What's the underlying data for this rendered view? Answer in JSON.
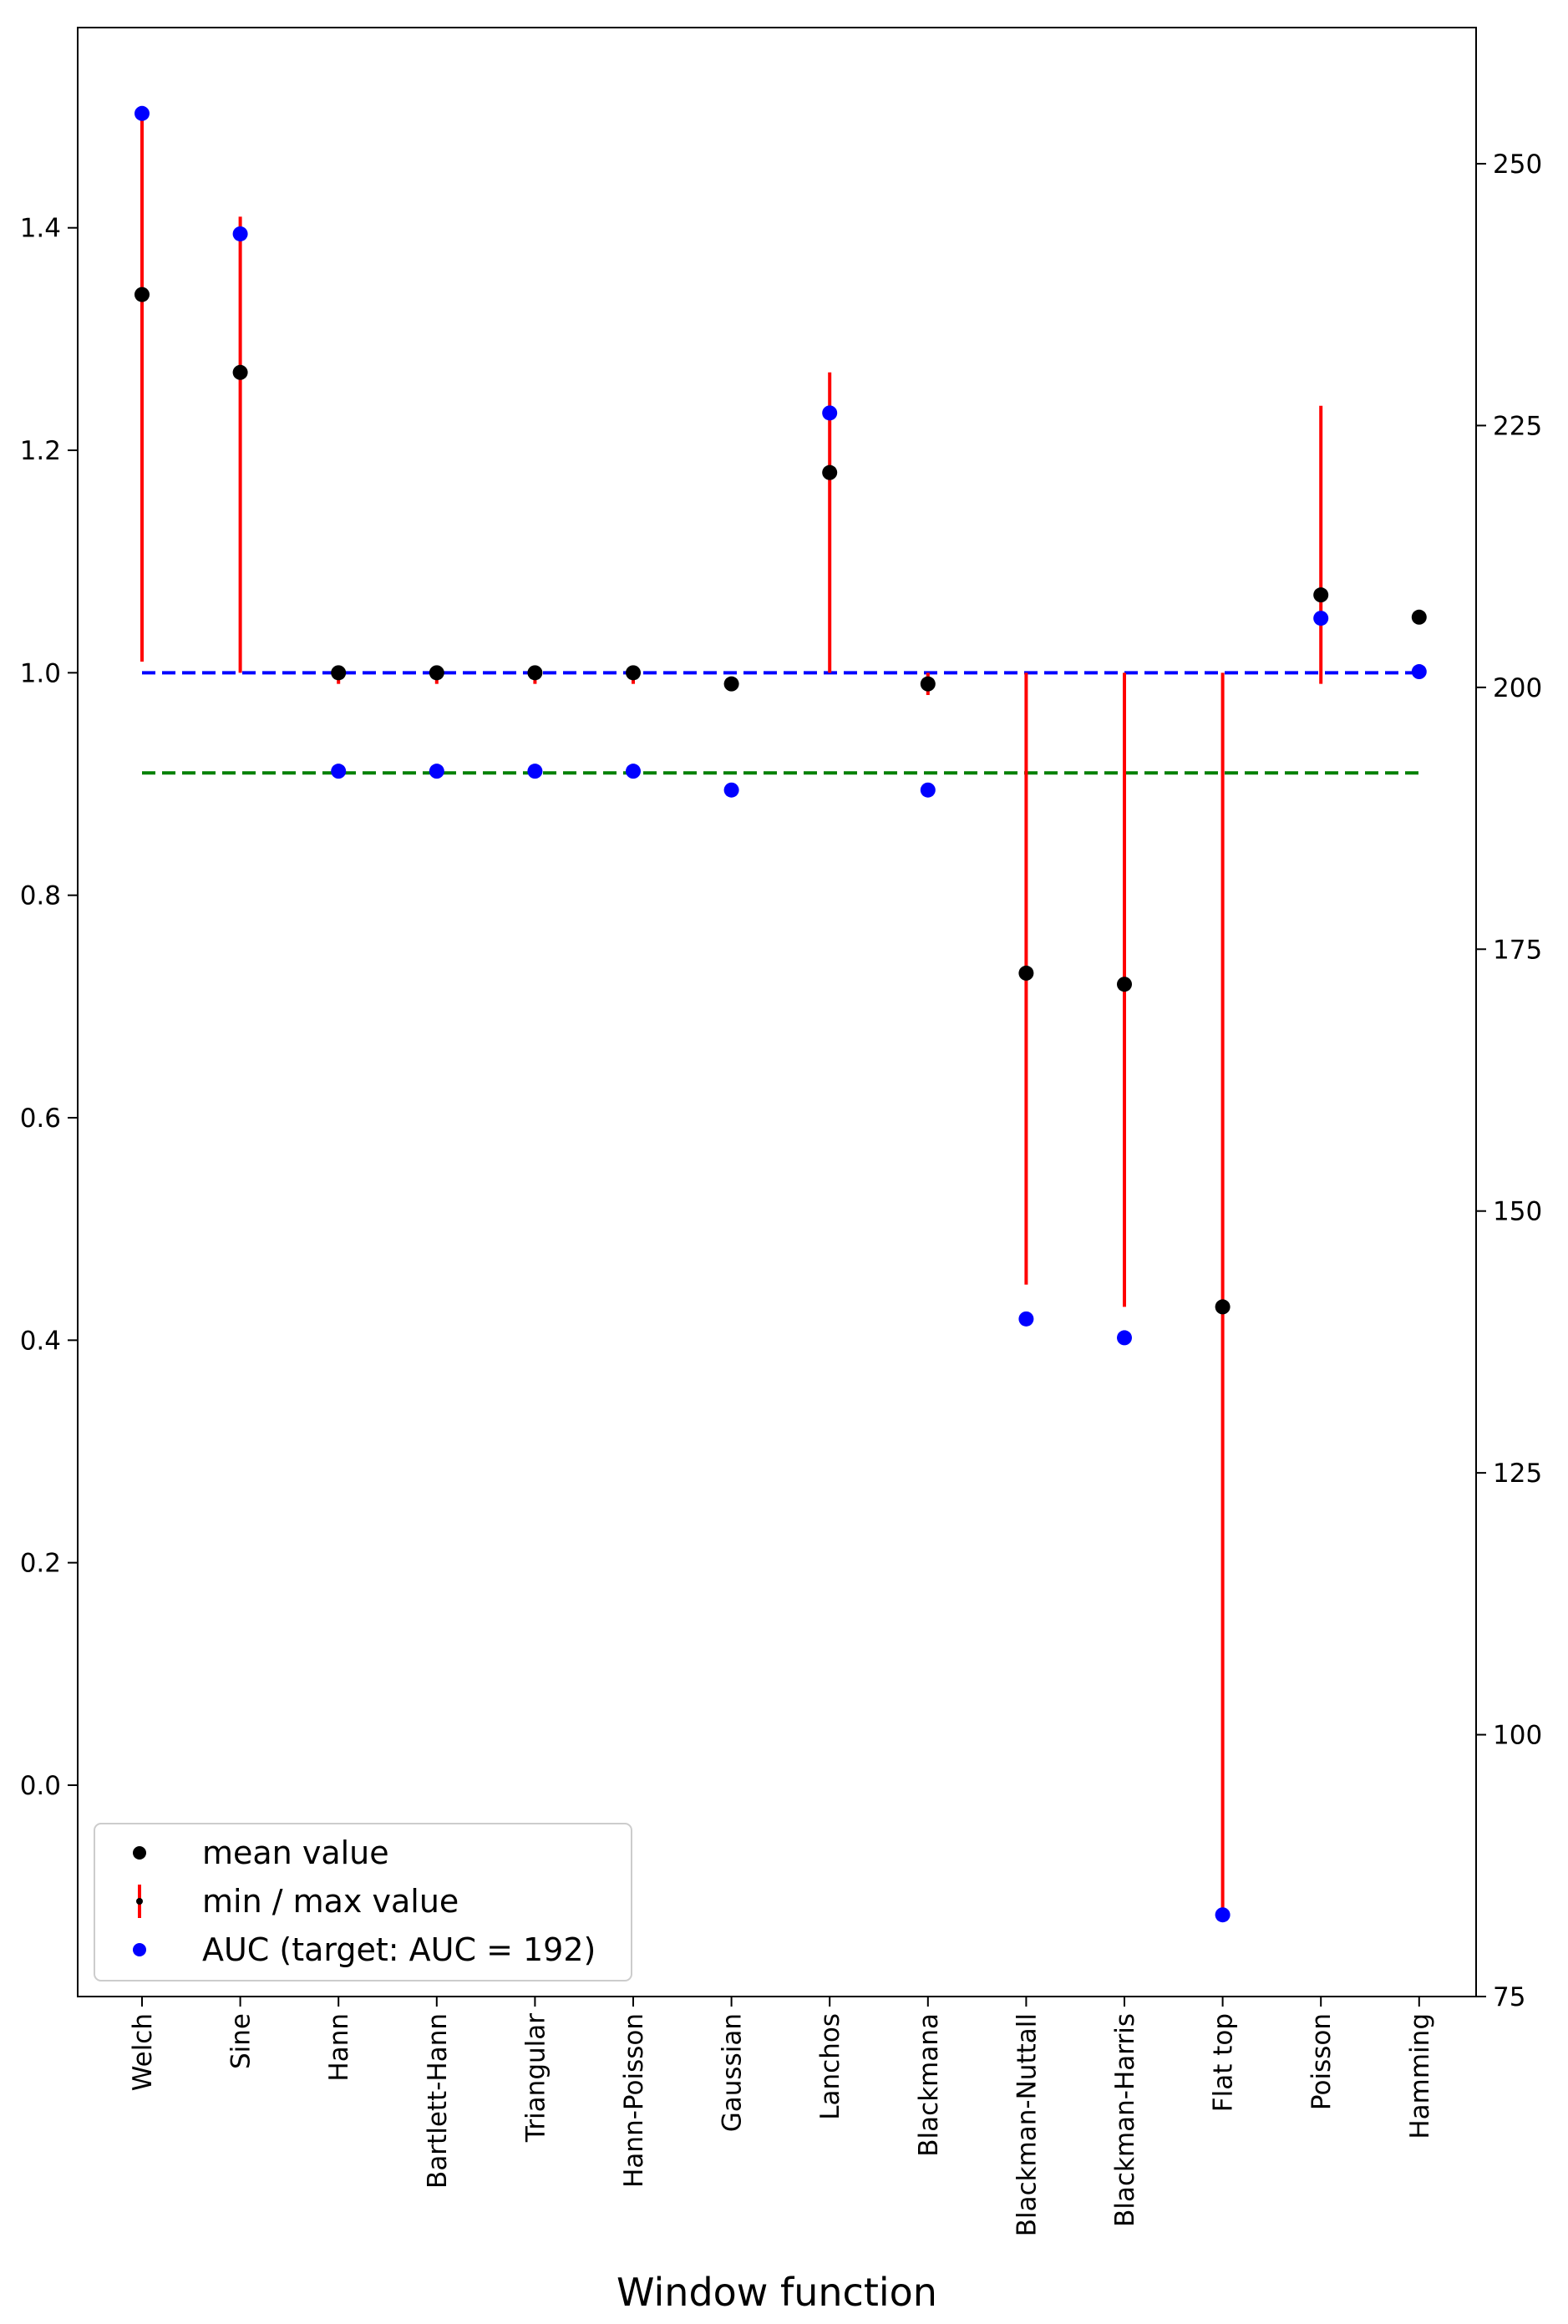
{
  "chart_data": {
    "type": "scatter",
    "xlabel": "Window function",
    "categories": [
      "Welch",
      "Sine",
      "Hann",
      "Bartlett-Hann",
      "Triangular",
      "Hann-Poisson",
      "Gaussian",
      "Lanchos",
      "Blackmana",
      "Blackman-Nuttall",
      "Blackman-Harris",
      "Flat top",
      "Poisson",
      "Hamming"
    ],
    "left_axis": {
      "ylim": [
        -0.19,
        1.58
      ],
      "ticks": [
        "0.0",
        "0.2",
        "0.4",
        "0.6",
        "0.8",
        "1.0",
        "1.2",
        "1.4"
      ]
    },
    "right_axis": {
      "ylim": [
        75,
        263
      ],
      "ticks": [
        "75",
        "100",
        "125",
        "150",
        "175",
        "200",
        "225",
        "250"
      ]
    },
    "series": [
      {
        "name": "mean value",
        "axis": "left",
        "color": "#000000",
        "values": [
          1.34,
          1.27,
          1.0,
          1.0,
          1.0,
          1.0,
          0.99,
          1.18,
          0.99,
          0.73,
          0.72,
          0.43,
          1.07,
          1.05
        ]
      },
      {
        "name": "min / max value",
        "axis": "left",
        "color": "#ff0000",
        "min": [
          1.01,
          1.0,
          0.99,
          0.99,
          0.99,
          0.99,
          0.99,
          1.0,
          0.98,
          0.45,
          0.43,
          -0.11,
          0.99,
          1.05
        ],
        "max": [
          1.5,
          1.41,
          1.0,
          1.0,
          1.0,
          1.0,
          0.99,
          1.27,
          1.0,
          1.0,
          1.0,
          1.0,
          1.24,
          1.05
        ]
      },
      {
        "name": "AUC (target: AUC = 192)",
        "axis": "right",
        "color": "#0000ff",
        "values": [
          254.8,
          243.3,
          192.0,
          192.0,
          192.0,
          192.0,
          190.2,
          226.2,
          190.2,
          139.7,
          137.9,
          82.8,
          206.6,
          201.5
        ]
      }
    ],
    "reference_lines": [
      {
        "axis": "left",
        "y": 1.0,
        "color": "#0000ff",
        "style": "dashed"
      },
      {
        "axis": "left",
        "y": 0.91,
        "color": "#008000",
        "style": "dashed"
      }
    ],
    "legend_position": "lower-left"
  }
}
